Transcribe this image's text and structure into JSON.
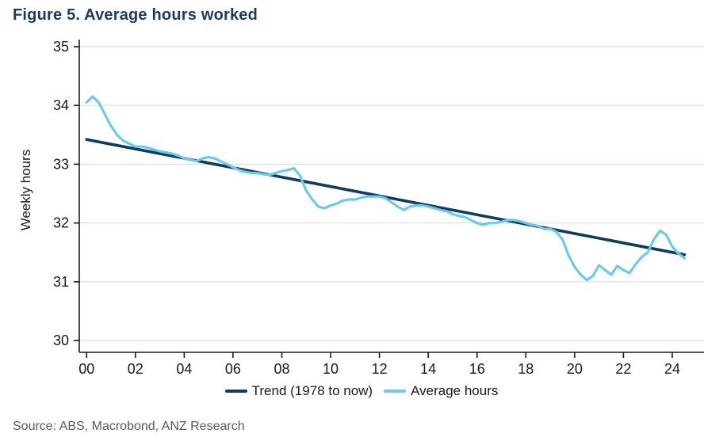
{
  "source": "Source: ABS, Macrobond, ANZ Research",
  "colors": {
    "title": "#1b3a5f",
    "trend": "#0d3c5f",
    "average": "#70c7e8",
    "axis": "#1a1a1a",
    "gridline": "#d9d9d9",
    "tick_label": "#1a1a1a",
    "source_text": "#58595b"
  },
  "chart_data": {
    "type": "line",
    "title": "Figure 5. Average hours worked",
    "xlabel": "",
    "ylabel": "Weekly hours",
    "ylim": [
      30,
      35
    ],
    "yticks": [
      30,
      31,
      32,
      33,
      34,
      35
    ],
    "xlim": [
      0,
      24.5
    ],
    "xticks": [
      0,
      2,
      4,
      6,
      8,
      10,
      12,
      14,
      16,
      18,
      20,
      22,
      24
    ],
    "xtick_labels": [
      "00",
      "02",
      "04",
      "06",
      "08",
      "10",
      "12",
      "14",
      "16",
      "18",
      "20",
      "22",
      "24"
    ],
    "grid": "horizontal",
    "legend_position": "bottom",
    "series": [
      {
        "name": "Trend (1978 to now)",
        "color": "#0d3c5f",
        "width": 3.6,
        "points": [
          [
            0,
            33.42
          ],
          [
            24.5,
            31.46
          ]
        ]
      },
      {
        "name": "Average hours",
        "color": "#70c7e8",
        "width": 3.2,
        "points": [
          [
            0,
            34.05
          ],
          [
            0.25,
            34.15
          ],
          [
            0.5,
            34.05
          ],
          [
            0.75,
            33.85
          ],
          [
            1,
            33.65
          ],
          [
            1.25,
            33.5
          ],
          [
            1.5,
            33.4
          ],
          [
            1.75,
            33.35
          ],
          [
            2,
            33.3
          ],
          [
            2.25,
            33.3
          ],
          [
            2.5,
            33.28
          ],
          [
            2.75,
            33.25
          ],
          [
            3,
            33.22
          ],
          [
            3.25,
            33.2
          ],
          [
            3.5,
            33.18
          ],
          [
            3.75,
            33.15
          ],
          [
            4,
            33.1
          ],
          [
            4.25,
            33.08
          ],
          [
            4.5,
            33.05
          ],
          [
            4.75,
            33.1
          ],
          [
            5,
            33.12
          ],
          [
            5.25,
            33.1
          ],
          [
            5.5,
            33.05
          ],
          [
            5.75,
            33.0
          ],
          [
            6,
            32.95
          ],
          [
            6.25,
            32.9
          ],
          [
            6.5,
            32.87
          ],
          [
            6.75,
            32.85
          ],
          [
            7,
            32.85
          ],
          [
            7.25,
            32.83
          ],
          [
            7.5,
            32.82
          ],
          [
            7.75,
            32.85
          ],
          [
            8,
            32.88
          ],
          [
            8.25,
            32.9
          ],
          [
            8.5,
            32.93
          ],
          [
            8.75,
            32.8
          ],
          [
            9,
            32.55
          ],
          [
            9.25,
            32.4
          ],
          [
            9.5,
            32.28
          ],
          [
            9.75,
            32.25
          ],
          [
            10,
            32.3
          ],
          [
            10.25,
            32.33
          ],
          [
            10.5,
            32.38
          ],
          [
            10.75,
            32.4
          ],
          [
            11,
            32.4
          ],
          [
            11.25,
            32.43
          ],
          [
            11.5,
            32.45
          ],
          [
            11.75,
            32.45
          ],
          [
            12,
            32.45
          ],
          [
            12.25,
            32.42
          ],
          [
            12.5,
            32.35
          ],
          [
            12.75,
            32.28
          ],
          [
            13,
            32.22
          ],
          [
            13.25,
            32.28
          ],
          [
            13.5,
            32.3
          ],
          [
            13.75,
            32.3
          ],
          [
            14,
            32.28
          ],
          [
            14.25,
            32.25
          ],
          [
            14.5,
            32.22
          ],
          [
            14.75,
            32.2
          ],
          [
            15,
            32.15
          ],
          [
            15.25,
            32.12
          ],
          [
            15.5,
            32.1
          ],
          [
            15.75,
            32.05
          ],
          [
            16,
            32.0
          ],
          [
            16.25,
            31.97
          ],
          [
            16.5,
            32.0
          ],
          [
            16.75,
            32.0
          ],
          [
            17,
            32.02
          ],
          [
            17.25,
            32.05
          ],
          [
            17.5,
            32.05
          ],
          [
            17.75,
            32.03
          ],
          [
            18,
            32.0
          ],
          [
            18.25,
            31.97
          ],
          [
            18.5,
            31.95
          ],
          [
            18.75,
            31.9
          ],
          [
            19,
            31.9
          ],
          [
            19.25,
            31.85
          ],
          [
            19.5,
            31.72
          ],
          [
            19.75,
            31.45
          ],
          [
            20,
            31.25
          ],
          [
            20.25,
            31.12
          ],
          [
            20.5,
            31.03
          ],
          [
            20.75,
            31.1
          ],
          [
            21,
            31.28
          ],
          [
            21.25,
            31.2
          ],
          [
            21.5,
            31.12
          ],
          [
            21.75,
            31.27
          ],
          [
            22,
            31.2
          ],
          [
            22.25,
            31.15
          ],
          [
            22.5,
            31.3
          ],
          [
            22.75,
            31.42
          ],
          [
            23,
            31.5
          ],
          [
            23.25,
            31.72
          ],
          [
            23.5,
            31.87
          ],
          [
            23.75,
            31.8
          ],
          [
            24,
            31.6
          ],
          [
            24.25,
            31.48
          ],
          [
            24.5,
            31.4
          ]
        ]
      }
    ]
  }
}
